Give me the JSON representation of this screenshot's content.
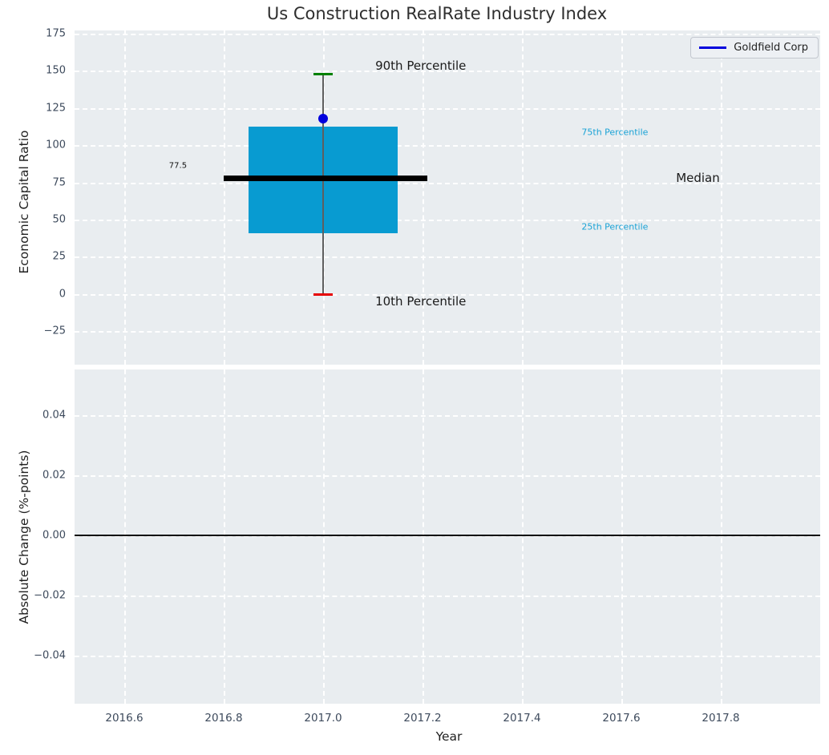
{
  "figure": {
    "title": "Us Construction RealRate Industry Index"
  },
  "legend": {
    "label": "Goldfield Corp",
    "line_color": "#0000dd",
    "position": "top-right"
  },
  "colors": {
    "plot_bg": "#e9edf0",
    "grid": "#ffffff",
    "tick_label": "#3d4a5c",
    "box_fill": "#089bd1",
    "median_line": "#000000",
    "whisker": "#5f5f5f",
    "cap_top": "#008000",
    "cap_bottom": "#e60000",
    "company_dot": "#0000dd",
    "percentile_label": "#1ba3d6",
    "zero_line": "#000000"
  },
  "chart_data": [
    {
      "type": "box",
      "title": "Us Construction RealRate Industry Index",
      "ylabel": "Economic Capital Ratio",
      "xlabel": "",
      "x": 2017.0,
      "values": {
        "p90": 147.5,
        "p75": 112.5,
        "median": 77.5,
        "p25": 41,
        "p10": -0.5,
        "goldfield_corp": 118
      },
      "box_span": [
        2016.85,
        2017.15
      ],
      "median_span": [
        2016.8,
        2017.21
      ],
      "cap_half_width": 0.019,
      "xlim": [
        2016.5,
        2018.0
      ],
      "ylim": [
        -47.4,
        177.0
      ],
      "yticks": [
        175,
        150,
        125,
        100,
        75,
        50,
        25,
        0,
        -25
      ],
      "ytick_labels": [
        "175",
        "150",
        "125",
        "100",
        "75",
        "50",
        "25",
        "0",
        "−25"
      ],
      "xticks": [
        2016.6,
        2016.8,
        2017.0,
        2017.2,
        2017.4,
        2017.6,
        2017.8
      ],
      "grid": true,
      "legend_entries": [
        "Goldfield Corp"
      ],
      "annotations": [
        {
          "text": "90th Percentile",
          "x": 2017.105,
          "y": 153.5,
          "color": "#1a1a1a",
          "size": 15
        },
        {
          "text": "10th Percentile",
          "x": 2017.105,
          "y": -5.0,
          "color": "#1a1a1a",
          "size": 15
        },
        {
          "text": "Median",
          "x": 2017.71,
          "y": 78.0,
          "color": "#1a1a1a",
          "size": 15
        },
        {
          "text": "75th Percentile",
          "x": 2017.52,
          "y": 108.5,
          "color": "#1ba3d6",
          "size": 11
        },
        {
          "text": "25th Percentile",
          "x": 2017.52,
          "y": 45.0,
          "color": "#1ba3d6",
          "size": 11
        },
        {
          "text": "77.5",
          "x": 2016.69,
          "y": 86.0,
          "color": "#111111",
          "size": 10
        }
      ]
    },
    {
      "type": "line",
      "title": "",
      "ylabel": "Absolute Change (%-points)",
      "xlabel": "Year",
      "series": [],
      "zero_line": 0.0,
      "xlim": [
        2016.5,
        2018.0
      ],
      "ylim": [
        -0.0559,
        0.0551
      ],
      "yticks": [
        0.04,
        0.02,
        0.0,
        -0.02,
        -0.04
      ],
      "ytick_labels": [
        "0.04",
        "0.02",
        "0.00",
        "−0.02",
        "−0.04"
      ],
      "xticks": [
        2016.6,
        2016.8,
        2017.0,
        2017.2,
        2017.4,
        2017.6,
        2017.8
      ],
      "xtick_labels": [
        "2016.6",
        "2016.8",
        "2017.0",
        "2017.2",
        "2017.4",
        "2017.6",
        "2017.8"
      ],
      "grid": true
    }
  ]
}
